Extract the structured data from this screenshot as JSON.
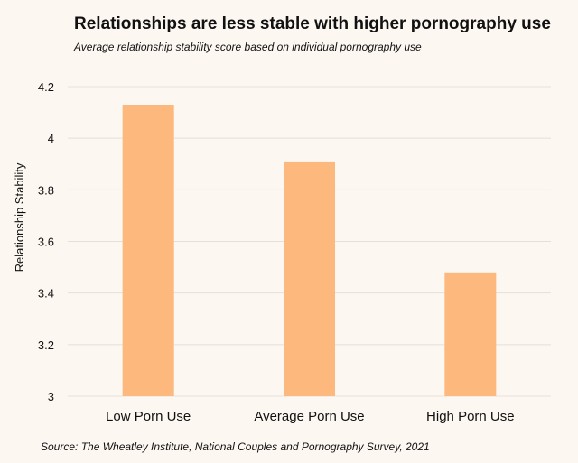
{
  "title": "Relationships are less stable with higher pornography use",
  "subtitle": "Average relationship stability score based on individual pornography use",
  "source": "Source: The Wheatley Institute, National Couples and Pornography Survey, 2021",
  "colors": {
    "background": "#fdf7f2",
    "bar": "#fdb87d",
    "gridline": "#e6e0da",
    "text": "#111111"
  },
  "chart_data": {
    "type": "bar",
    "categories": [
      "Low Porn Use",
      "Average Porn Use",
      "High Porn Use"
    ],
    "values": [
      4.13,
      3.91,
      3.48
    ],
    "xlabel": "",
    "ylabel": "Relationship Stability",
    "ylim": [
      3,
      4.2
    ],
    "yticks": [
      3,
      3.2,
      3.4,
      3.6,
      3.8,
      4,
      4.2
    ],
    "ytick_labels": [
      "3",
      "3.2",
      "3.4",
      "3.6",
      "3.8",
      "4",
      "4.2"
    ],
    "grid": true,
    "legend": "none"
  }
}
